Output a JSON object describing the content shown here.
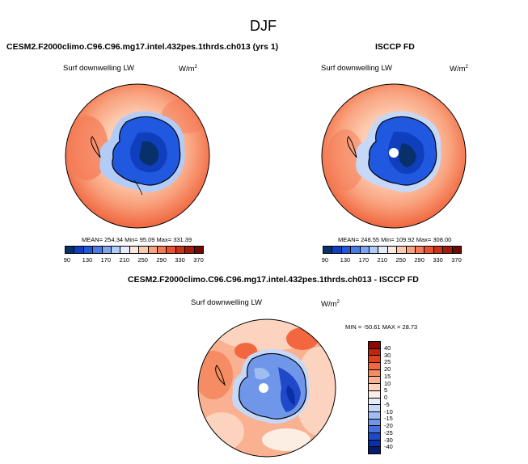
{
  "figure": {
    "title": "DJF",
    "case_name": "CESM2.F2000climo.C96.C96.mg17.intel.432pes.1thrds.ch013 (yrs 1)",
    "obs_name": "ISCCP FD",
    "diff_title": "CESM2.F2000climo.C96.C96.mg17.intel.432pes.1thrds.ch013 - ISCCP FD"
  },
  "variable": "Surf downwelling LW",
  "units_main": "W/m",
  "units_exp": "2",
  "panels": {
    "model": {
      "stats": "MEAN= 254.34  Min= 95.09  Max= 331.39"
    },
    "obs": {
      "stats": "MEAN= 248.55  Min= 109.92  Max= 308.00"
    },
    "diff": {
      "stats": "MIN = -50.61  MAX =  28.73"
    }
  },
  "colorbar_main": {
    "ticks": [
      "90",
      "130",
      "170",
      "210",
      "250",
      "290",
      "330",
      "370"
    ],
    "colors": [
      "#08306b",
      "#0f3fbd",
      "#2158e0",
      "#4a7bea",
      "#7fa5f2",
      "#b3ccf7",
      "#e4ecfb",
      "#fde8dc",
      "#fcc9ad",
      "#f9a27e",
      "#f57a56",
      "#e8532f",
      "#cc3316",
      "#a31b0a",
      "#6e0b04"
    ]
  },
  "colorbar_diff": {
    "ticks": [
      "40",
      "30",
      "25",
      "20",
      "15",
      "10",
      "5",
      "0",
      "-5",
      "-10",
      "-15",
      "-20",
      "-25",
      "-30",
      "-40"
    ],
    "colors": [
      "#8b0a02",
      "#c0250f",
      "#e2411f",
      "#f2673f",
      "#f68c63",
      "#f9b191",
      "#fcd3bf",
      "#fdeee4",
      "#e6eefb",
      "#c6d8f8",
      "#9fbcf3",
      "#7096ea",
      "#4670de",
      "#1f49c9",
      "#0b2fa8",
      "#051c70"
    ]
  },
  "colors": {
    "land_outline": "#000000"
  }
}
